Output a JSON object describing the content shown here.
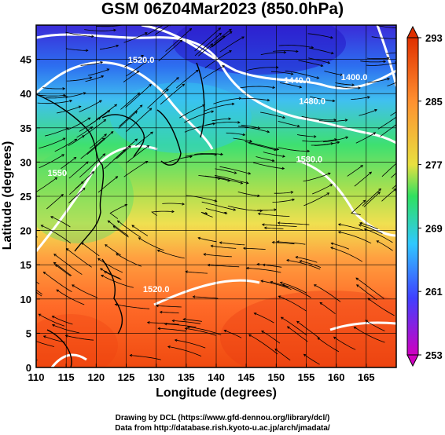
{
  "title": "GSM 06Z04Mar2023 (850.0hPa)",
  "xaxis": {
    "label": "Longitude (degrees)",
    "ticks": [
      "110",
      "115",
      "120",
      "125",
      "130",
      "135",
      "140",
      "145",
      "150",
      "155",
      "160",
      "165"
    ]
  },
  "yaxis": {
    "label": "Latitude (degrees)",
    "ticks": [
      "0",
      "5",
      "10",
      "15",
      "20",
      "25",
      "30",
      "35",
      "40",
      "45"
    ]
  },
  "extent": {
    "lon": [
      110,
      170
    ],
    "lat": [
      0,
      50
    ]
  },
  "colorbar": {
    "labels": [
      "293",
      "285",
      "277",
      "269",
      "261",
      "253"
    ],
    "min": 253,
    "max": 293,
    "colors": [
      "#d000c0",
      "#4040ff",
      "#30d0ff",
      "#30e060",
      "#e0e040",
      "#ff8020",
      "#e03000"
    ]
  },
  "contours": [
    {
      "label": "1440.0",
      "lon": 153.5,
      "lat": 41.5
    },
    {
      "label": "1400.0",
      "lon": 163,
      "lat": 42.0
    },
    {
      "label": "1480.0",
      "lon": 156.0,
      "lat": 38.5
    },
    {
      "label": "1520.0",
      "lon": 127.5,
      "lat": 44.5
    },
    {
      "label": "1550",
      "lon": 113.5,
      "lat": 28.0
    },
    {
      "label": "1520.0",
      "lon": 130.0,
      "lat": 11.0
    },
    {
      "label": "1580.0",
      "lon": 155.5,
      "lat": 30.0
    }
  ],
  "credits": [
    "Drawing by DCL (https://www.gfd-dennou.org/library/dcl/)",
    "Data from http://database.rish.kyoto-u.ac.jp/arch/jmadata/"
  ]
}
